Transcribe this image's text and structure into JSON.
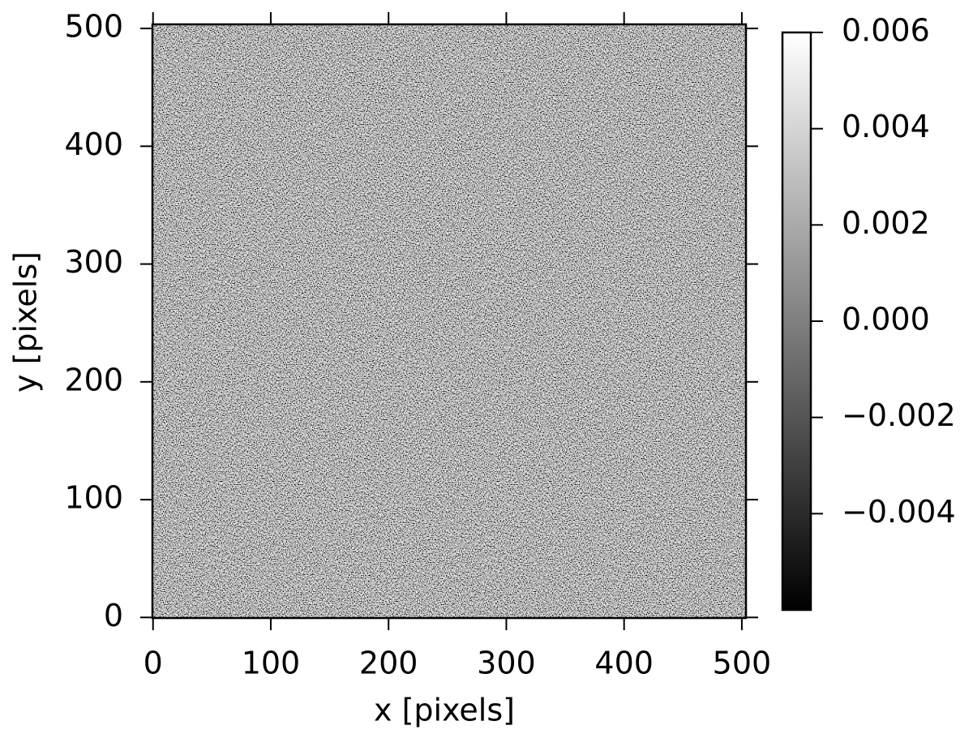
{
  "chart_data": {
    "type": "image",
    "xlabel": "x [pixels]",
    "ylabel": "y [pixels]",
    "xlim": [
      -0.5,
      503.5
    ],
    "ylim": [
      -0.5,
      503.5
    ],
    "xticks": [
      0,
      100,
      200,
      300,
      400,
      500
    ],
    "yticks": [
      0,
      100,
      200,
      300,
      400,
      500
    ],
    "clim": [
      -0.006,
      0.006
    ],
    "cticks": [
      {
        "value": -0.004,
        "label": "−0.004"
      },
      {
        "value": -0.002,
        "label": "−0.002"
      },
      {
        "value": 0,
        "label": "0.000"
      },
      0.002,
      0.004,
      0.006
    ],
    "cmap_colors": [
      "#000000",
      "#ffffff"
    ]
  }
}
